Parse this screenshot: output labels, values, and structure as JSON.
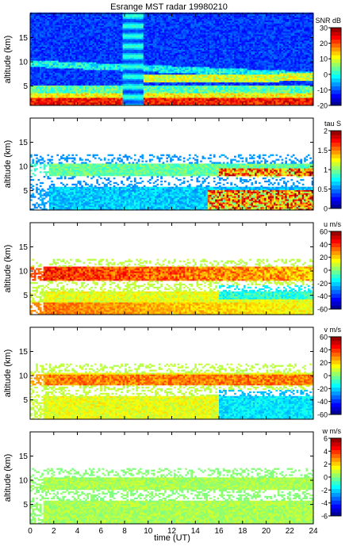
{
  "figure": {
    "title": "Esrange MST radar 19980210",
    "xlabel": "time (UT)"
  },
  "chart_data": [
    {
      "type": "heatmap",
      "ylabel": "altitude (km)",
      "colorbar_label": "SNR dB",
      "clim": [
        -20,
        30
      ],
      "cbar_ticks": [
        -20,
        -10,
        0,
        10,
        20,
        30
      ],
      "xlim": [
        0,
        24
      ],
      "ylim": [
        1,
        20
      ],
      "x_ticks": [
        0,
        2,
        4,
        6,
        8,
        10,
        12,
        14,
        16,
        18,
        20,
        22,
        24
      ],
      "y_ticks": [
        5,
        10,
        15
      ],
      "field": "snr"
    },
    {
      "type": "heatmap",
      "ylabel": "altitude (km)",
      "colorbar_label": "tau S",
      "clim": [
        0,
        2
      ],
      "cbar_ticks": [
        0,
        0.5,
        1,
        1.5,
        2
      ],
      "xlim": [
        0,
        24
      ],
      "ylim": [
        1,
        20
      ],
      "x_ticks": [
        0,
        2,
        4,
        6,
        8,
        10,
        12,
        14,
        16,
        18,
        20,
        22,
        24
      ],
      "y_ticks": [
        5,
        10,
        15
      ],
      "field": "tau"
    },
    {
      "type": "heatmap",
      "ylabel": "altitude (km)",
      "colorbar_label": "u m/s",
      "clim": [
        -60,
        60
      ],
      "cbar_ticks": [
        -60,
        -40,
        -20,
        0,
        20,
        40,
        60
      ],
      "xlim": [
        0,
        24
      ],
      "ylim": [
        1,
        20
      ],
      "x_ticks": [
        0,
        2,
        4,
        6,
        8,
        10,
        12,
        14,
        16,
        18,
        20,
        22,
        24
      ],
      "y_ticks": [
        5,
        10,
        15
      ],
      "field": "u"
    },
    {
      "type": "heatmap",
      "ylabel": "altitude (km)",
      "colorbar_label": "v m/s",
      "clim": [
        -60,
        60
      ],
      "cbar_ticks": [
        -60,
        -40,
        -20,
        0,
        20,
        40,
        60
      ],
      "xlim": [
        0,
        24
      ],
      "ylim": [
        1,
        20
      ],
      "x_ticks": [
        0,
        2,
        4,
        6,
        8,
        10,
        12,
        14,
        16,
        18,
        20,
        22,
        24
      ],
      "y_ticks": [
        5,
        10,
        15
      ],
      "field": "v"
    },
    {
      "type": "heatmap",
      "ylabel": "altitude (km)",
      "colorbar_label": "w m/s",
      "clim": [
        -6,
        6
      ],
      "cbar_ticks": [
        -6,
        -4,
        -2,
        0,
        2,
        4,
        6
      ],
      "xlim": [
        0,
        24
      ],
      "ylim": [
        1,
        20
      ],
      "x_ticks": [
        0,
        2,
        4,
        6,
        8,
        10,
        12,
        14,
        16,
        18,
        20,
        22,
        24
      ],
      "y_ticks": [
        5,
        10,
        15
      ],
      "field": "w"
    }
  ]
}
